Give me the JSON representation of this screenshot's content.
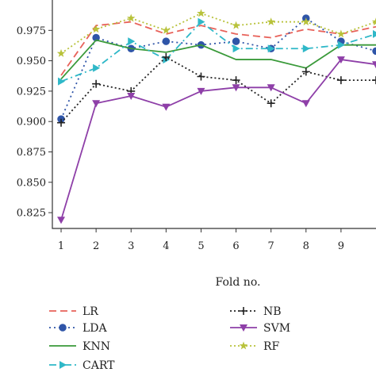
{
  "chart_data": {
    "type": "line",
    "xlabel": "Fold no.",
    "ylabel": "",
    "x": [
      1,
      2,
      3,
      4,
      5,
      6,
      7,
      8,
      9,
      10
    ],
    "xticks": [
      1,
      2,
      3,
      4,
      5,
      6,
      7,
      8,
      9
    ],
    "xlim": [
      0.75,
      10
    ],
    "ylim": [
      0.812,
      1.0
    ],
    "yticks": [
      "0.825",
      "0.850",
      "0.875",
      "0.900",
      "0.925",
      "0.950",
      "0.975"
    ],
    "legend_position": "below-plot",
    "series": [
      {
        "name": "LR",
        "color": "#e8625a",
        "dash": "9,5",
        "marker": "none",
        "values": [
          0.938,
          0.979,
          0.982,
          0.972,
          0.979,
          0.972,
          0.969,
          0.976,
          0.972,
          0.978
        ]
      },
      {
        "name": "LDA",
        "color": "#2f55a8",
        "dash": "2,4",
        "marker": "circle",
        "values": [
          0.902,
          0.969,
          0.96,
          0.966,
          0.963,
          0.966,
          0.96,
          0.985,
          0.966,
          0.958
        ]
      },
      {
        "name": "KNN",
        "color": "#3a9a3a",
        "dash": "none",
        "marker": "none",
        "values": [
          0.935,
          0.967,
          0.96,
          0.957,
          0.963,
          0.951,
          0.951,
          0.944,
          0.963,
          0.963
        ]
      },
      {
        "name": "CART",
        "color": "#2fb8c8",
        "dash": "9,4,2,4",
        "marker": "triangle-right",
        "values": [
          0.933,
          0.944,
          0.966,
          0.951,
          0.982,
          0.96,
          0.96,
          0.96,
          0.963,
          0.972
        ]
      },
      {
        "name": "NB",
        "color": "#222222",
        "dash": "2,3",
        "marker": "plus",
        "values": [
          0.899,
          0.931,
          0.925,
          0.953,
          0.937,
          0.934,
          0.915,
          0.941,
          0.934,
          0.934
        ]
      },
      {
        "name": "SVM",
        "color": "#8e3fa8",
        "dash": "none",
        "marker": "triangle-down",
        "values": [
          0.819,
          0.915,
          0.921,
          0.912,
          0.925,
          0.928,
          0.928,
          0.915,
          0.951,
          0.947
        ]
      },
      {
        "name": "RF",
        "color": "#b8c23a",
        "dash": "2,3",
        "marker": "star",
        "values": [
          0.956,
          0.976,
          0.985,
          0.975,
          0.989,
          0.979,
          0.982,
          0.982,
          0.972,
          0.982
        ]
      }
    ]
  }
}
